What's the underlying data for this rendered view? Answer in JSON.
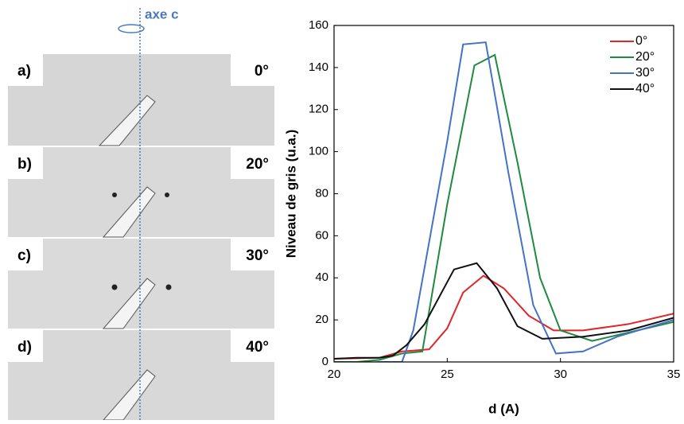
{
  "figure_panels": [
    {
      "label": "a)",
      "angle": "0°"
    },
    {
      "label": "b)",
      "angle": "20°"
    },
    {
      "label": "c)",
      "angle": "30°"
    },
    {
      "label": "d)",
      "angle": "40°"
    }
  ],
  "axis_annotation": "axe c",
  "chart_data": {
    "type": "line",
    "xlabel": "d (A)",
    "ylabel": "Niveau de gris (u.a.)",
    "xlim": [
      20,
      35
    ],
    "ylim": [
      0,
      160
    ],
    "xticks": [
      20,
      25,
      30,
      35
    ],
    "yticks": [
      0,
      20,
      40,
      60,
      80,
      100,
      120,
      140,
      160
    ],
    "grid": false,
    "legend": "upper right",
    "series": [
      {
        "name": "0°",
        "color": "#e0262b",
        "x": [
          20,
          22,
          23,
          24.2,
          25,
          25.7,
          26.6,
          27.5,
          28.6,
          29.7,
          31,
          33,
          35
        ],
        "values": [
          1.5,
          2,
          5,
          6,
          16,
          33,
          41,
          35,
          22,
          15,
          15,
          18,
          23
        ]
      },
      {
        "name": "20°",
        "color": "#1e8a3e",
        "x": [
          20,
          21,
          22,
          23,
          23.9,
          25,
          26.2,
          27.1,
          28.1,
          29.1,
          30,
          31.4,
          33,
          35
        ],
        "values": [
          0,
          0,
          1,
          4,
          5,
          75,
          141,
          146,
          95,
          40,
          15,
          10,
          14,
          19
        ]
      },
      {
        "name": "30°",
        "color": "#4472c4",
        "x": [
          20,
          21,
          22,
          23,
          23.5,
          24,
          25,
          25.7,
          26.7,
          27.7,
          28.8,
          29.8,
          31,
          32.5,
          35
        ],
        "values": [
          0,
          -1,
          0,
          0,
          15,
          45,
          105,
          151,
          152,
          90,
          27,
          4,
          5,
          12,
          20
        ]
      },
      {
        "name": "40°",
        "color": "#111111",
        "x": [
          20,
          21,
          22,
          22.6,
          23.2,
          24,
          25.3,
          26.3,
          27.2,
          28.1,
          29.2,
          31,
          33,
          35
        ],
        "values": [
          1.5,
          2,
          2,
          3,
          8,
          18,
          44,
          47,
          35,
          17,
          11,
          12,
          15,
          21
        ]
      }
    ]
  }
}
